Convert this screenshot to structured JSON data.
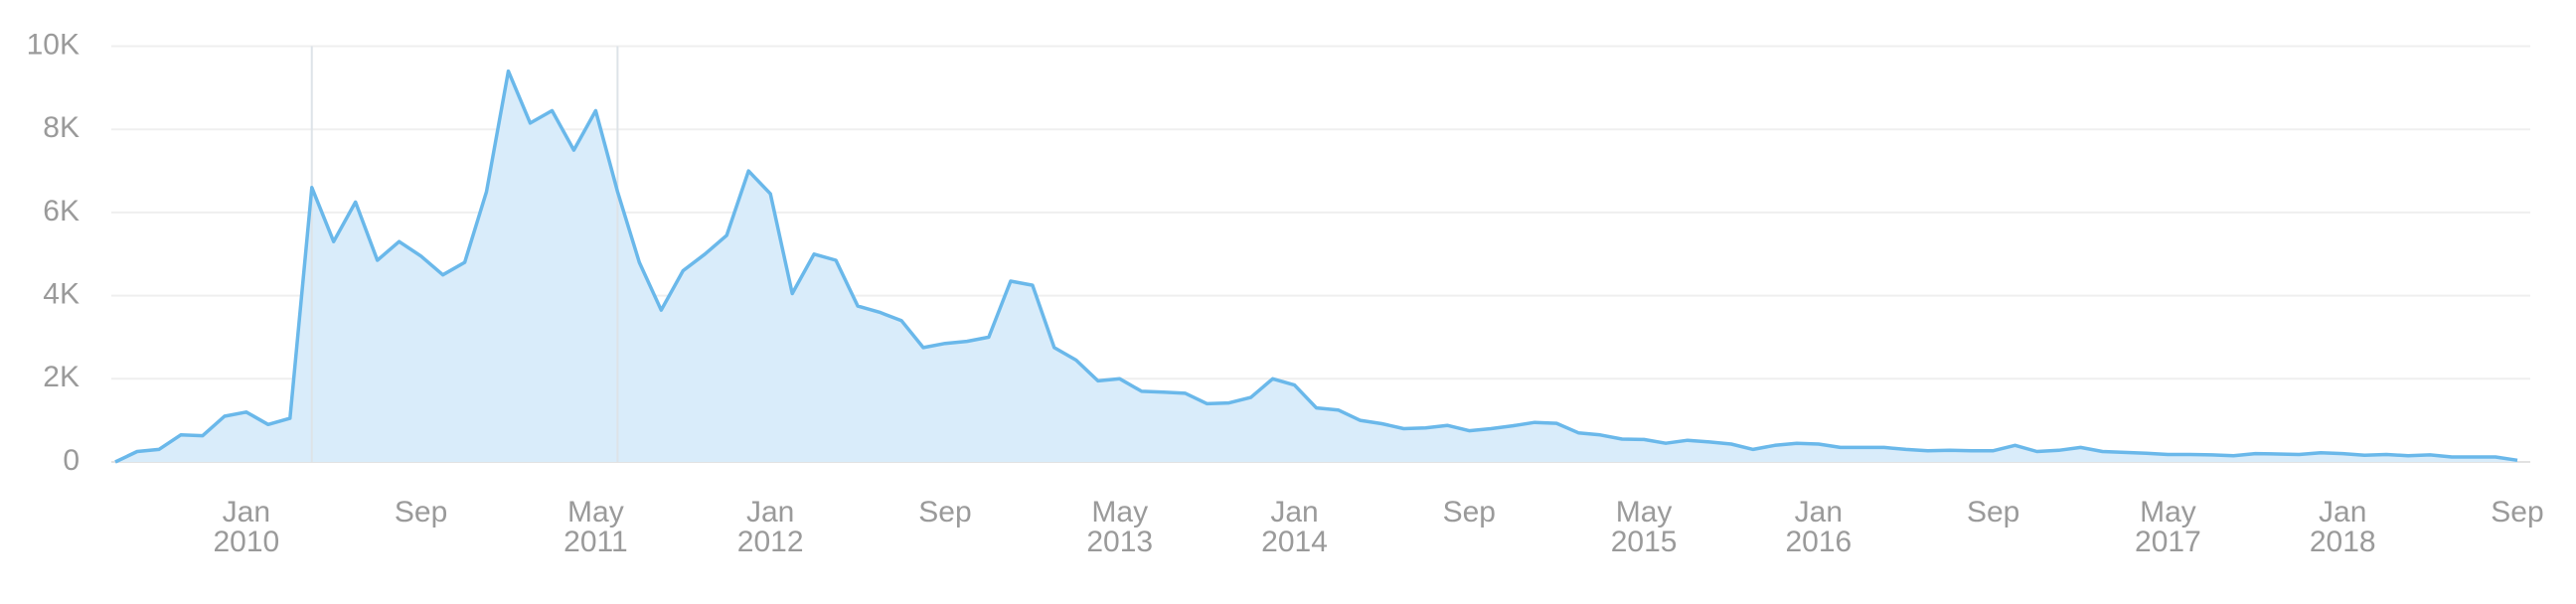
{
  "chart_data": {
    "type": "area",
    "x": [
      "2009-07",
      "2009-08",
      "2009-09",
      "2009-10",
      "2009-11",
      "2009-12",
      "2010-01",
      "2010-02",
      "2010-03",
      "2010-04",
      "2010-05",
      "2010-06",
      "2010-07",
      "2010-08",
      "2010-09",
      "2010-10",
      "2010-11",
      "2010-12",
      "2011-01",
      "2011-02",
      "2011-03",
      "2011-04",
      "2011-05",
      "2011-06",
      "2011-07",
      "2011-08",
      "2011-09",
      "2011-10",
      "2011-11",
      "2011-12",
      "2012-01",
      "2012-02",
      "2012-03",
      "2012-04",
      "2012-05",
      "2012-06",
      "2012-07",
      "2012-08",
      "2012-09",
      "2012-10",
      "2012-11",
      "2012-12",
      "2013-01",
      "2013-02",
      "2013-03",
      "2013-04",
      "2013-05",
      "2013-06",
      "2013-07",
      "2013-08",
      "2013-09",
      "2013-10",
      "2013-11",
      "2013-12",
      "2014-01",
      "2014-02",
      "2014-03",
      "2014-04",
      "2014-05",
      "2014-06",
      "2014-07",
      "2014-08",
      "2014-09",
      "2014-10",
      "2014-11",
      "2014-12",
      "2015-01",
      "2015-02",
      "2015-03",
      "2015-04",
      "2015-05",
      "2015-06",
      "2015-07",
      "2015-08",
      "2015-09",
      "2015-10",
      "2015-11",
      "2015-12",
      "2016-01",
      "2016-02",
      "2016-03",
      "2016-04",
      "2016-05",
      "2016-06",
      "2016-07",
      "2016-08",
      "2016-09",
      "2016-10",
      "2016-11",
      "2016-12",
      "2017-01",
      "2017-02",
      "2017-03",
      "2017-04",
      "2017-05",
      "2017-06",
      "2017-07",
      "2017-08",
      "2017-09",
      "2017-10",
      "2017-11",
      "2017-12",
      "2018-01",
      "2018-02",
      "2018-03",
      "2018-04",
      "2018-05",
      "2018-06",
      "2018-07",
      "2018-08",
      "2018-09"
    ],
    "values": [
      0,
      250,
      300,
      650,
      630,
      1100,
      1200,
      900,
      1050,
      6600,
      5300,
      6250,
      4850,
      5300,
      4950,
      4500,
      4800,
      6500,
      9400,
      8150,
      8450,
      7500,
      8450,
      6500,
      4800,
      3650,
      4600,
      5000,
      5450,
      7000,
      6450,
      4050,
      5000,
      4850,
      3750,
      3600,
      3400,
      2750,
      2850,
      2900,
      3000,
      4350,
      4250,
      2750,
      2450,
      1950,
      2000,
      1700,
      1680,
      1650,
      1400,
      1420,
      1550,
      2000,
      1850,
      1300,
      1250,
      1000,
      920,
      800,
      820,
      880,
      750,
      800,
      870,
      950,
      930,
      700,
      650,
      550,
      540,
      450,
      520,
      480,
      430,
      300,
      400,
      450,
      430,
      350,
      350,
      350,
      300,
      270,
      280,
      270,
      270,
      400,
      250,
      280,
      350,
      250,
      230,
      210,
      180,
      180,
      170,
      150,
      200,
      190,
      180,
      220,
      200,
      160,
      180,
      150,
      170,
      120,
      120,
      120,
      40
    ],
    "color": "#6ab8ea",
    "fill": "#d9ecfa",
    "ylim": [
      0,
      10000
    ],
    "yticks": [
      0,
      {
        "value": 2000,
        "label": "2K"
      },
      {
        "value": 4000,
        "label": "4K"
      },
      {
        "value": 6000,
        "label": "6K"
      },
      {
        "value": 8000,
        "label": "8K"
      },
      {
        "value": 10000,
        "label": "10K"
      }
    ],
    "xticks": [
      {
        "value": "2010-01",
        "label": [
          "Jan",
          "2010"
        ]
      },
      {
        "value": "2010-09",
        "label": [
          "Sep"
        ]
      },
      {
        "value": "2011-05",
        "label": [
          "May",
          "2011"
        ]
      },
      {
        "value": "2012-01",
        "label": [
          "Jan",
          "2012"
        ]
      },
      {
        "value": "2012-09",
        "label": [
          "Sep"
        ]
      },
      {
        "value": "2013-05",
        "label": [
          "May",
          "2013"
        ]
      },
      {
        "value": "2014-01",
        "label": [
          "Jan",
          "2014"
        ]
      },
      {
        "value": "2014-09",
        "label": [
          "Sep"
        ]
      },
      {
        "value": "2015-05",
        "label": [
          "May",
          "2015"
        ]
      },
      {
        "value": "2016-01",
        "label": [
          "Jan",
          "2016"
        ]
      },
      {
        "value": "2016-09",
        "label": [
          "Sep"
        ]
      },
      {
        "value": "2017-05",
        "label": [
          "May",
          "2017"
        ]
      },
      {
        "value": "2018-01",
        "label": [
          "Jan",
          "2018"
        ]
      },
      {
        "value": "2018-09",
        "label": [
          "Sep"
        ]
      }
    ],
    "markers": [
      "2010-04",
      "2011-06"
    ],
    "grid": true
  }
}
